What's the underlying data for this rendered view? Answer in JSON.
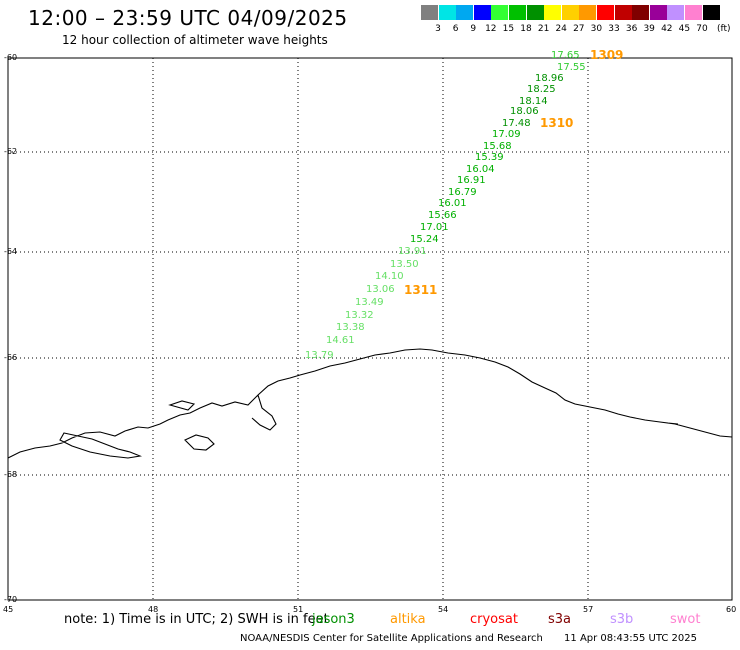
{
  "title": "12:00 – 23:59 UTC 04/09/2025",
  "subtitle": "12 hour collection of altimeter wave heights",
  "legend": {
    "colors": [
      "#808080",
      "#00e5e5",
      "#00a8f0",
      "#0000ff",
      "#33ff33",
      "#00c000",
      "#009000",
      "#ffff00",
      "#ffd000",
      "#ff9900",
      "#ff0000",
      "#c00000",
      "#800000",
      "#990099",
      "#c090ff",
      "#ff80d0",
      "#000000"
    ],
    "levels": [
      "3",
      "6",
      "9",
      "12",
      "15",
      "18",
      "21",
      "24",
      "27",
      "30",
      "33",
      "36",
      "39",
      "42",
      "45",
      "70"
    ],
    "unit": "(ft)"
  },
  "axes": {
    "lat_labels": [
      "-60",
      "-62",
      "-64",
      "-66",
      "-68",
      "-70"
    ],
    "lon_labels": [
      "45",
      "48",
      "51",
      "54",
      "57",
      "60"
    ]
  },
  "passes": [
    {
      "id": "1309",
      "color": "#ff9900"
    },
    {
      "id": "1310",
      "color": "#ff9900"
    },
    {
      "id": "1311",
      "color": "#ff9900"
    }
  ],
  "wave_heights": [
    {
      "value": "17.65",
      "color": "#33cc33"
    },
    {
      "value": "17.55",
      "color": "#33cc33"
    },
    {
      "value": "18.96",
      "color": "#009000"
    },
    {
      "value": "18.25",
      "color": "#009000"
    },
    {
      "value": "18.14",
      "color": "#009000"
    },
    {
      "value": "18.06",
      "color": "#009000"
    },
    {
      "value": "17.48",
      "color": "#009000"
    },
    {
      "value": "17.09",
      "color": "#00b000"
    },
    {
      "value": "15.68",
      "color": "#00b000"
    },
    {
      "value": "15.39",
      "color": "#00b000"
    },
    {
      "value": "16.04",
      "color": "#00b000"
    },
    {
      "value": "16.91",
      "color": "#00b000"
    },
    {
      "value": "16.79",
      "color": "#00b000"
    },
    {
      "value": "16.01",
      "color": "#00b000"
    },
    {
      "value": "15.66",
      "color": "#00b000"
    },
    {
      "value": "17.01",
      "color": "#00b000"
    },
    {
      "value": "15.24",
      "color": "#00b000"
    },
    {
      "value": "13.91",
      "color": "#66e066"
    },
    {
      "value": "13.50",
      "color": "#66e066"
    },
    {
      "value": "14.10",
      "color": "#66e066"
    },
    {
      "value": "13.06",
      "color": "#66e066"
    },
    {
      "value": "13.49",
      "color": "#66e066"
    },
    {
      "value": "13.32",
      "color": "#66e066"
    },
    {
      "value": "13.38",
      "color": "#66e066"
    },
    {
      "value": "14.61",
      "color": "#66e066"
    },
    {
      "value": "13.79",
      "color": "#66e066"
    }
  ],
  "note": "note:  1) Time is in UTC; 2) SWH is in feet",
  "satellites": [
    {
      "name": "jason3",
      "color": "#009000"
    },
    {
      "name": "altika",
      "color": "#ff9900"
    },
    {
      "name": "cryosat",
      "color": "#ff0000"
    },
    {
      "name": "s3a",
      "color": "#800000"
    },
    {
      "name": "s3b",
      "color": "#c090ff"
    },
    {
      "name": "swot",
      "color": "#ff80d0"
    }
  ],
  "footer": {
    "credit": "NOAA/NESDIS Center for Satellite Applications and Research",
    "timestamp": "11 Apr 08:43:55 UTC 2025"
  }
}
